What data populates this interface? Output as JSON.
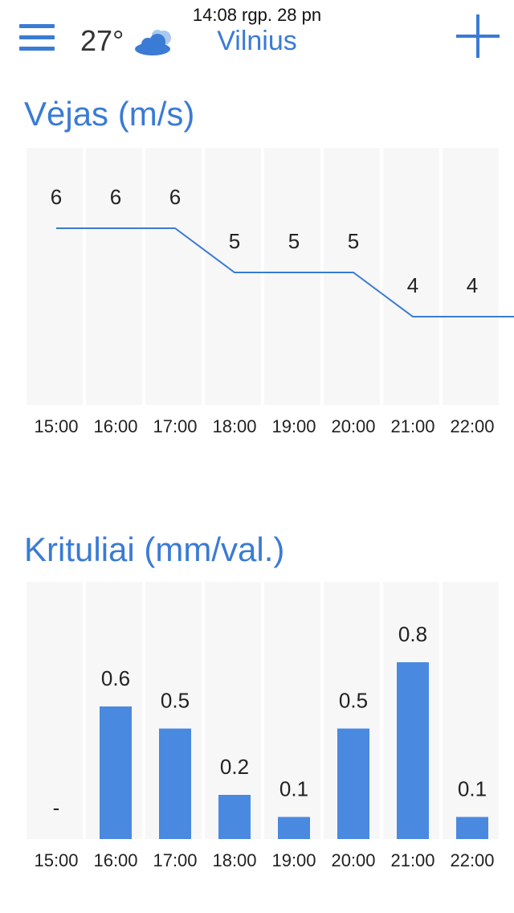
{
  "header": {
    "status_time": "14:08 rgp. 28 pn",
    "temperature": "27°",
    "weather_icon": "partly-cloudy-icon",
    "city": "Vilnius",
    "menu_icon": "hamburger-menu-icon",
    "add_icon": "plus-icon"
  },
  "colors": {
    "accent": "#3a7bd5",
    "bar": "#4a89e0",
    "column_bg": "#f7f7f7",
    "text": "#222222"
  },
  "wind": {
    "title": "Vėjas (m/s)"
  },
  "precip": {
    "title": "Krituliai (mm/val.)"
  },
  "chart_data": [
    {
      "type": "line",
      "title": "Vėjas (m/s)",
      "categories": [
        "15:00",
        "16:00",
        "17:00",
        "18:00",
        "19:00",
        "20:00",
        "21:00",
        "22:00"
      ],
      "values": [
        6,
        6,
        6,
        5,
        5,
        5,
        4,
        4
      ],
      "labels": [
        "6",
        "6",
        "6",
        "5",
        "5",
        "5",
        "4",
        "4"
      ]
    },
    {
      "type": "bar",
      "title": "Krituliai (mm/val.)",
      "categories": [
        "15:00",
        "16:00",
        "17:00",
        "18:00",
        "19:00",
        "20:00",
        "21:00",
        "22:00"
      ],
      "values": [
        0,
        0.6,
        0.5,
        0.2,
        0.1,
        0.5,
        0.8,
        0.1
      ],
      "labels": [
        "-",
        "0.6",
        "0.5",
        "0.2",
        "0.1",
        "0.5",
        "0.8",
        "0.1"
      ]
    }
  ]
}
